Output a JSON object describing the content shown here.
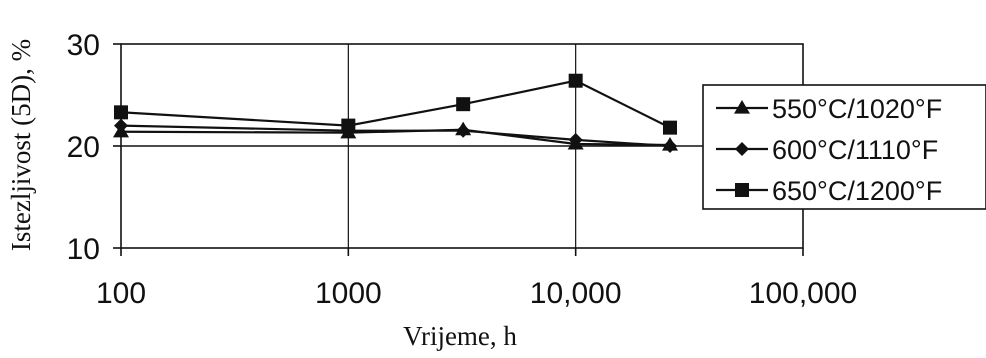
{
  "chart_data": {
    "type": "line",
    "title": "",
    "xlabel": "Vrijeme, h",
    "ylabel": "Istezljivost (5D), %",
    "x_scale": "log",
    "xlim": [
      100,
      100000
    ],
    "ylim": [
      10,
      30
    ],
    "x_ticks": [
      100,
      1000,
      10000,
      100000
    ],
    "x_tick_labels": [
      "100",
      "1000",
      "10,000",
      "100,000"
    ],
    "y_ticks": [
      10,
      20,
      30
    ],
    "y_tick_labels": [
      "10",
      "20",
      "30"
    ],
    "grid": "major",
    "legend_position": "right",
    "series": [
      {
        "name": "550°C/1020°F",
        "marker": "triangle",
        "x": [
          100,
          1000,
          3200,
          10000,
          26000
        ],
        "y": [
          21.4,
          21.3,
          21.6,
          20.2,
          20.1
        ]
      },
      {
        "name": "600°C/1110°F",
        "marker": "diamond",
        "x": [
          100,
          1000,
          3200,
          10000,
          26000
        ],
        "y": [
          22.0,
          21.5,
          21.5,
          20.6,
          20.0
        ]
      },
      {
        "name": "650°C/1200°F",
        "marker": "square",
        "x": [
          100,
          1000,
          3200,
          10000,
          26000
        ],
        "y": [
          23.3,
          22.0,
          24.1,
          26.4,
          21.8
        ]
      }
    ]
  }
}
